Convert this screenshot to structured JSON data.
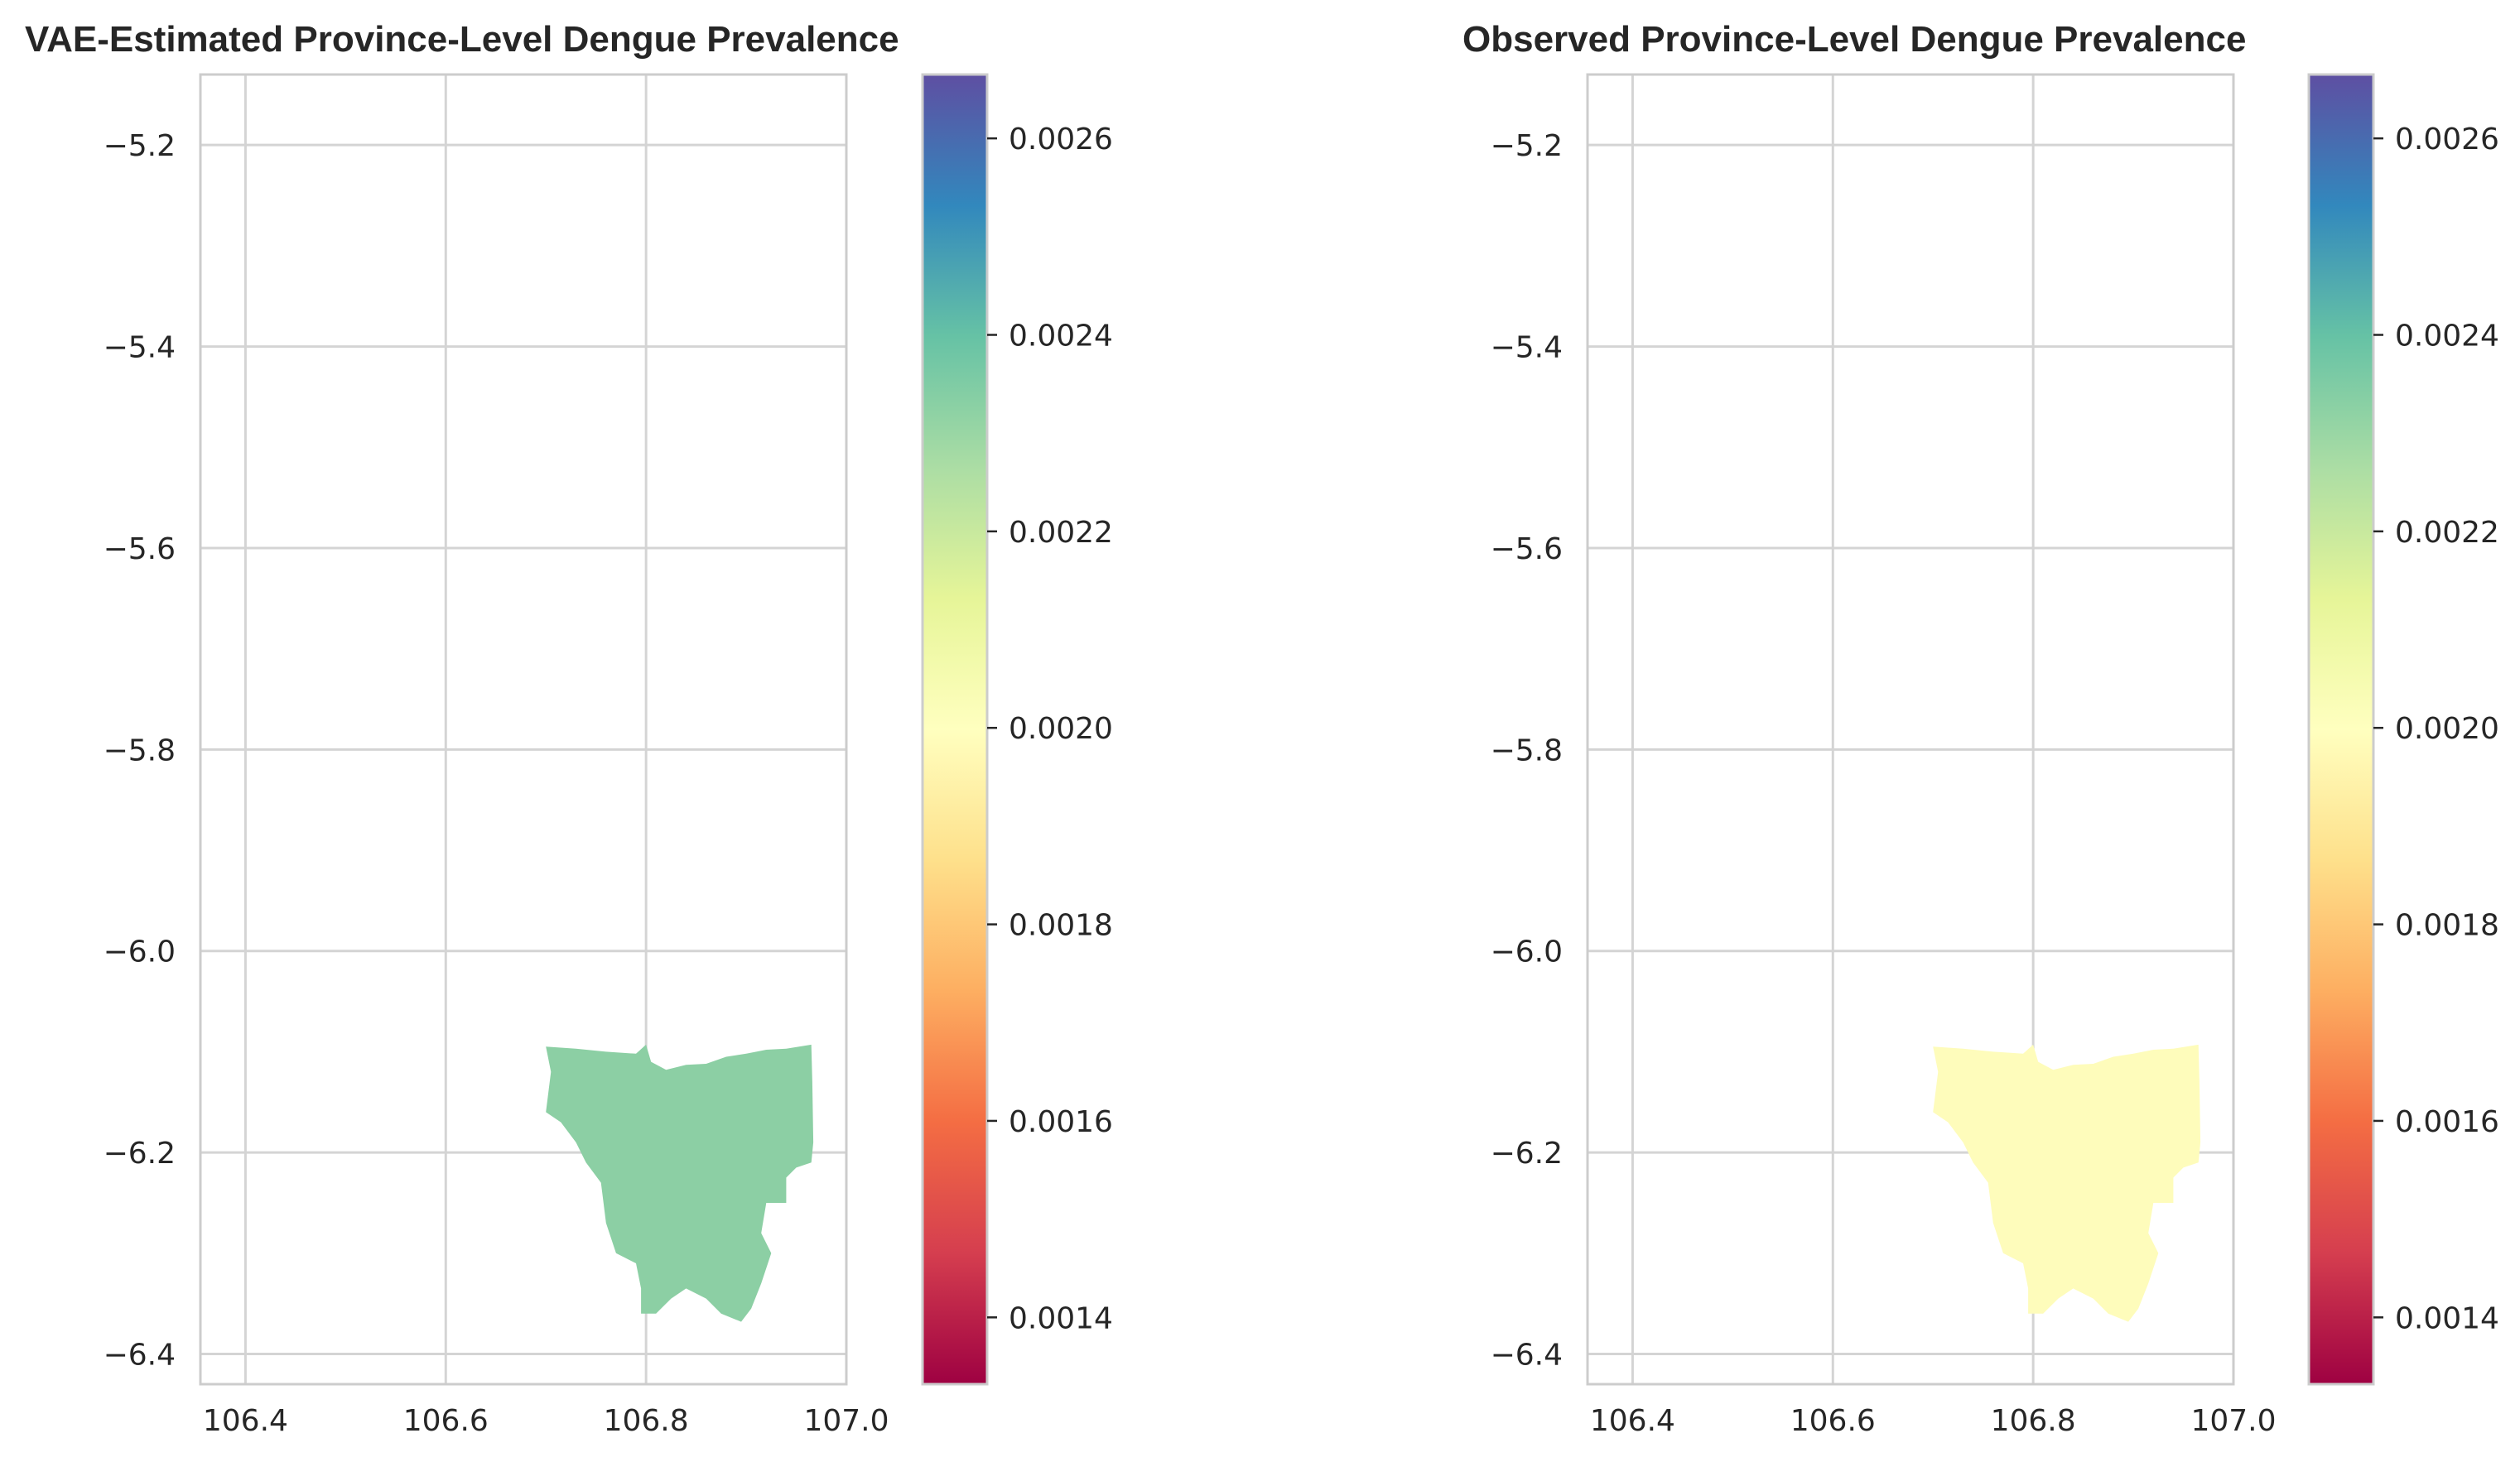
{
  "figure": {
    "panels": [
      {
        "title": "VAE-Estimated Province-Level Dengue Prevalence",
        "value": 0.00237,
        "fill_color": "#8ccfa4"
      },
      {
        "title": "Observed Province-Level Dengue Prevalence",
        "value": 0.00198,
        "fill_color": "#fefcbb"
      }
    ],
    "axes": {
      "xlim": [
        106.355,
        107.0
      ],
      "ylim": [
        -6.43,
        -5.13
      ],
      "x_ticks": [
        "106.4",
        "106.6",
        "106.8",
        "107.0"
      ],
      "x_tick_values": [
        106.4,
        106.6,
        106.8,
        107.0
      ],
      "y_ticks": [
        "−5.2",
        "−5.4",
        "−5.6",
        "−5.8",
        "−6.0",
        "−6.2",
        "−6.4"
      ],
      "y_tick_values": [
        -5.2,
        -5.4,
        -5.6,
        -5.8,
        -6.0,
        -6.2,
        -6.4
      ],
      "grid": true
    },
    "colorbar": {
      "colormap": "Spectral",
      "range": [
        0.001332,
        0.002665
      ],
      "ticks": [
        "0.0014",
        "0.0016",
        "0.0018",
        "0.0020",
        "0.0022",
        "0.0024",
        "0.0026"
      ],
      "tick_values": [
        0.0014,
        0.0016,
        0.0018,
        0.002,
        0.0022,
        0.0024,
        0.0026
      ],
      "stops": [
        "#9e0142",
        "#d53e4f",
        "#f46d43",
        "#fdae61",
        "#fee08b",
        "#ffffbf",
        "#e6f598",
        "#abdda4",
        "#66c2a5",
        "#3288bd",
        "#5e4fa2"
      ]
    },
    "region_outline": [
      [
        106.7,
        -6.095
      ],
      [
        106.73,
        -6.097
      ],
      [
        106.76,
        -6.1
      ],
      [
        106.79,
        -6.102
      ],
      [
        106.8,
        -6.093
      ],
      [
        106.805,
        -6.11
      ],
      [
        106.82,
        -6.118
      ],
      [
        106.84,
        -6.113
      ],
      [
        106.86,
        -6.112
      ],
      [
        106.88,
        -6.105
      ],
      [
        106.9,
        -6.102
      ],
      [
        106.92,
        -6.098
      ],
      [
        106.94,
        -6.097
      ],
      [
        106.965,
        -6.093
      ],
      [
        106.966,
        -6.13
      ],
      [
        106.967,
        -6.19
      ],
      [
        106.965,
        -6.21
      ],
      [
        106.95,
        -6.215
      ],
      [
        106.94,
        -6.225
      ],
      [
        106.94,
        -6.25
      ],
      [
        106.92,
        -6.25
      ],
      [
        106.915,
        -6.28
      ],
      [
        106.925,
        -6.3
      ],
      [
        106.915,
        -6.33
      ],
      [
        106.905,
        -6.355
      ],
      [
        106.895,
        -6.368
      ],
      [
        106.875,
        -6.36
      ],
      [
        106.86,
        -6.345
      ],
      [
        106.84,
        -6.335
      ],
      [
        106.825,
        -6.345
      ],
      [
        106.81,
        -6.36
      ],
      [
        106.795,
        -6.36
      ],
      [
        106.795,
        -6.335
      ],
      [
        106.79,
        -6.31
      ],
      [
        106.77,
        -6.3
      ],
      [
        106.76,
        -6.27
      ],
      [
        106.755,
        -6.23
      ],
      [
        106.74,
        -6.21
      ],
      [
        106.73,
        -6.19
      ],
      [
        106.715,
        -6.17
      ],
      [
        106.7,
        -6.16
      ],
      [
        106.705,
        -6.12
      ]
    ]
  }
}
